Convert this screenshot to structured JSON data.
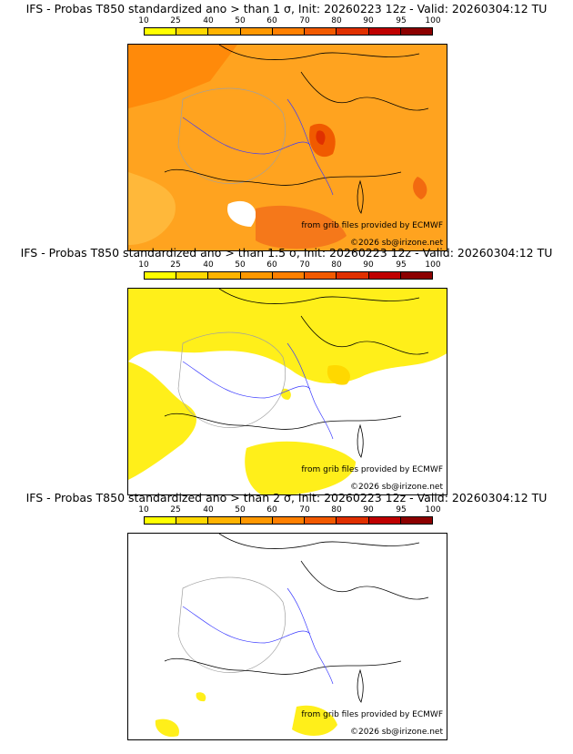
{
  "colorbar": {
    "ticks": [
      "10",
      "25",
      "40",
      "50",
      "60",
      "70",
      "80",
      "90",
      "95",
      "100"
    ],
    "colors": [
      "#ffff00",
      "#ffd800",
      "#ffb300",
      "#ff9800",
      "#ff8000",
      "#f25a00",
      "#e03000",
      "#bf0000",
      "#8c0000",
      "#5a0000"
    ]
  },
  "panels": [
    {
      "title": "IFS - Probas T850  standardized ano > than 1 σ, Init: 20260223 12z - Valid: 20260304:12 TU",
      "credit_grib": "from grib files provided by ECMWF",
      "credit_copy": "©2026 sb@irizone.net",
      "fill": "#ff9e1a"
    },
    {
      "title": "IFS - Probas T850  standardized ano > than 1.5 σ, Init: 20260223 12z - Valid: 20260304:12 TU",
      "credit_grib": "from grib files provided by ECMWF",
      "credit_copy": "©2026 sb@irizone.net",
      "fill": "#ffef1a"
    },
    {
      "title": "IFS - Probas T850  standardized ano > than 2 σ, Init: 20260223 12z - Valid: 20260304:12 TU",
      "credit_grib": "from grib files provided by ECMWF",
      "credit_copy": "©2026 sb@irizone.net",
      "fill": "#ffffff"
    }
  ]
}
